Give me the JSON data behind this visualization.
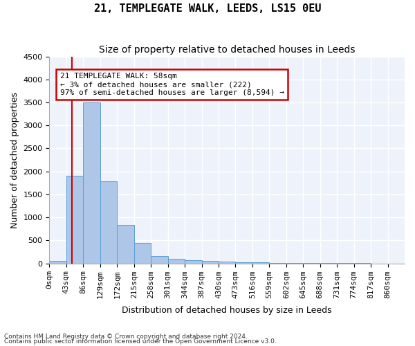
{
  "title": "21, TEMPLEGATE WALK, LEEDS, LS15 0EU",
  "subtitle": "Size of property relative to detached houses in Leeds",
  "xlabel": "Distribution of detached houses by size in Leeds",
  "ylabel": "Number of detached properties",
  "bar_labels": [
    "0sqm",
    "43sqm",
    "86sqm",
    "129sqm",
    "172sqm",
    "215sqm",
    "258sqm",
    "301sqm",
    "344sqm",
    "387sqm",
    "430sqm",
    "473sqm",
    "516sqm",
    "559sqm",
    "602sqm",
    "645sqm",
    "688sqm",
    "731sqm",
    "774sqm",
    "817sqm",
    "860sqm"
  ],
  "bar_values": [
    50,
    1900,
    3500,
    1780,
    840,
    450,
    160,
    100,
    70,
    55,
    45,
    30,
    20,
    15,
    10,
    8,
    6,
    4,
    3,
    2,
    1
  ],
  "bar_color": "#aec6e8",
  "bar_edgecolor": "#5a9fd4",
  "ylim": [
    0,
    4500
  ],
  "yticks": [
    0,
    500,
    1000,
    1500,
    2000,
    2500,
    3000,
    3500,
    4000,
    4500
  ],
  "annotation_text": "21 TEMPLEGATE WALK: 58sqm\n← 3% of detached houses are smaller (222)\n97% of semi-detached houses are larger (8,594) →",
  "annotation_box_color": "#ffffff",
  "annotation_border_color": "#cc0000",
  "footnote1": "Contains HM Land Registry data © Crown copyright and database right 2024.",
  "footnote2": "Contains public sector information licensed under the Open Government Licence v3.0.",
  "bg_color": "#ffffff",
  "plot_bg_color": "#eef3fb",
  "grid_color": "#ffffff",
  "title_fontsize": 11,
  "subtitle_fontsize": 10,
  "axis_label_fontsize": 9,
  "tick_fontsize": 8
}
